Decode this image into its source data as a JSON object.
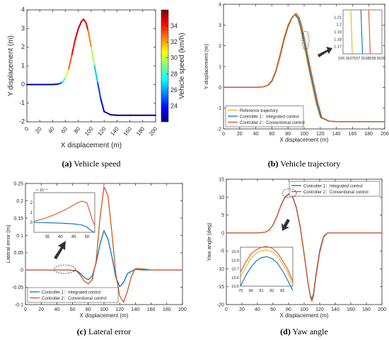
{
  "chart_data": [
    {
      "id": "a",
      "type": "line",
      "caption_letter": "(a)",
      "caption_text": " Vehicle speed",
      "xlabel": "X displacement (m)",
      "ylabel": "Y displacement (m)",
      "xlim": [
        0,
        200
      ],
      "ylim": [
        -2,
        4
      ],
      "xticks": [
        0,
        20,
        40,
        60,
        80,
        100,
        120,
        140,
        160,
        180,
        200
      ],
      "yticks": [
        -2,
        -1,
        0,
        1,
        2,
        3,
        4
      ],
      "colorbar": {
        "label": "Vehicle speed (km/h)",
        "range": [
          22,
          36
        ],
        "ticks": [
          24,
          26,
          28,
          30,
          32,
          34
        ]
      },
      "series": [
        {
          "x": [
            0,
            40,
            50,
            55,
            60,
            65,
            70,
            75,
            80,
            85,
            88,
            92,
            95,
            100,
            105,
            110,
            115,
            120,
            130,
            140,
            160,
            200
          ],
          "y": [
            0,
            0,
            0.03,
            0.12,
            0.35,
            0.85,
            1.6,
            2.4,
            3.0,
            3.4,
            3.5,
            3.3,
            2.9,
            2.0,
            1.0,
            0.1,
            -0.8,
            -1.45,
            -1.62,
            -1.65,
            -1.65,
            -1.65
          ],
          "speed": [
            22,
            22,
            23,
            26,
            29,
            32,
            34,
            35,
            35,
            35,
            35,
            35,
            34,
            31,
            28,
            25,
            24,
            23,
            22,
            22,
            22,
            22
          ]
        }
      ]
    },
    {
      "id": "b",
      "type": "line",
      "caption_letter": "(b)",
      "caption_text": " Vehicle trajectory",
      "xlabel": "X displacement (m)",
      "ylabel": "Y displacement (m)",
      "xlim": [
        0,
        200
      ],
      "ylim": [
        -2,
        4
      ],
      "xticks": [
        0,
        20,
        40,
        60,
        80,
        100,
        120,
        140,
        160,
        180,
        200
      ],
      "yticks": [
        -2,
        -1,
        0,
        1,
        2,
        3,
        4
      ],
      "legend": "bottom-left",
      "series": [
        {
          "name": "Reference trajectory",
          "color": "#edb120",
          "x": [
            0,
            40,
            50,
            55,
            60,
            65,
            70,
            75,
            80,
            85,
            88,
            92,
            95,
            100,
            105,
            110,
            115,
            120,
            130,
            140,
            160,
            200
          ],
          "y": [
            0,
            0,
            0.03,
            0.12,
            0.35,
            0.85,
            1.6,
            2.4,
            3.0,
            3.4,
            3.5,
            3.3,
            2.9,
            2.0,
            1.0,
            0.1,
            -0.8,
            -1.45,
            -1.62,
            -1.65,
            -1.65,
            -1.65
          ]
        },
        {
          "name": "Controller 1：Integrated control",
          "color": "#0072bd",
          "x": [
            0,
            40,
            50,
            55,
            60,
            65,
            70,
            75,
            80,
            85,
            89,
            93,
            96,
            101,
            106,
            111,
            116,
            121,
            131,
            140,
            160,
            200
          ],
          "y": [
            0,
            0,
            0.03,
            0.1,
            0.3,
            0.78,
            1.5,
            2.3,
            2.95,
            3.35,
            3.52,
            3.3,
            2.9,
            2.0,
            1.0,
            0.1,
            -0.8,
            -1.45,
            -1.63,
            -1.65,
            -1.65,
            -1.65
          ]
        },
        {
          "name": "Controller 2：Conventional control",
          "color": "#d95319",
          "x": [
            0,
            40,
            50,
            55,
            60,
            65,
            70,
            75,
            80,
            85,
            90,
            94,
            97,
            102,
            107,
            112,
            117,
            122,
            132,
            140,
            160,
            200
          ],
          "y": [
            0,
            0,
            0.03,
            0.1,
            0.28,
            0.75,
            1.45,
            2.25,
            2.9,
            3.35,
            3.56,
            3.35,
            2.95,
            2.05,
            1.05,
            0.15,
            -0.75,
            -1.45,
            -1.64,
            -1.65,
            -1.65,
            -1.65
          ]
        }
      ],
      "inset": {
        "xlim": [
          106.5,
          109
        ],
        "ylim": [
          1.16,
          1.22
        ],
        "xticks": [
          106.5,
          107,
          107.5,
          108,
          108.5,
          109
        ],
        "yticks": [
          1.16,
          1.17,
          1.18,
          1.19,
          1.2,
          1.21
        ],
        "lines": [
          {
            "color": "#edb120",
            "x": [
              107.1,
              107.0
            ]
          },
          {
            "color": "#0072bd",
            "x": [
              107.75,
              107.65
            ]
          },
          {
            "color": "#d95319",
            "x": [
              108.25,
              108.15
            ]
          }
        ]
      }
    },
    {
      "id": "c",
      "type": "line",
      "caption_letter": "(c)",
      "caption_text": " Lateral error",
      "xlabel": "X displacement (m)",
      "ylabel": "Lateral error (m)",
      "xlim": [
        0,
        200
      ],
      "ylim": [
        -0.1,
        0.25
      ],
      "xticks": [
        0,
        20,
        40,
        60,
        80,
        100,
        120,
        140,
        160,
        180,
        200
      ],
      "yticks": [
        -0.1,
        -0.05,
        0,
        0.05,
        0.1,
        0.15,
        0.2,
        0.25
      ],
      "legend": "bottom-left",
      "series": [
        {
          "name": "Controller 1：Integrated control",
          "color": "#0072bd",
          "x": [
            0,
            40,
            55,
            65,
            70,
            75,
            80,
            85,
            90,
            95,
            100,
            105,
            110,
            115,
            120,
            125,
            130,
            140,
            150,
            160,
            200
          ],
          "y": [
            0,
            0,
            0,
            -0.002,
            -0.01,
            -0.022,
            -0.028,
            -0.018,
            0.02,
            0.075,
            0.113,
            0.09,
            0.04,
            -0.02,
            -0.048,
            -0.036,
            -0.01,
            0.002,
            0,
            0,
            0
          ]
        },
        {
          "name": "Controller 2：Conventional control",
          "color": "#d95319",
          "x": [
            0,
            40,
            55,
            65,
            70,
            75,
            80,
            85,
            90,
            95,
            100,
            105,
            110,
            115,
            120,
            125,
            130,
            135,
            140,
            150,
            160,
            200
          ],
          "y": [
            0,
            0,
            0,
            -0.003,
            -0.015,
            -0.033,
            -0.04,
            -0.028,
            0.025,
            0.15,
            0.24,
            0.215,
            0.11,
            -0.01,
            -0.075,
            -0.093,
            -0.06,
            -0.018,
            0.004,
            0.003,
            0,
            0
          ]
        }
      ],
      "inset": {
        "exponent_label": "× 10⁻⁴",
        "xlim": [
          30,
          53
        ],
        "ylim": [
          -1,
          3
        ],
        "xticks": [
          35,
          40,
          45,
          50
        ],
        "yticks": [
          0,
          1,
          2
        ],
        "lines": [
          {
            "color": "#d95319",
            "x": [
              30,
              34,
              38,
              42,
              46,
              48,
              50,
              51,
              52,
              53
            ],
            "y": [
              0.1,
              0.4,
              0.8,
              1.3,
              1.9,
              2.15,
              2.0,
              1.2,
              0.3,
              -0.3
            ]
          },
          {
            "color": "#0072bd",
            "x": [
              30,
              35,
              40,
              45,
              48,
              50,
              51,
              52,
              53
            ],
            "y": [
              0,
              -0.03,
              -0.08,
              -0.15,
              -0.25,
              -0.45,
              -0.7,
              -0.9,
              -1.0
            ]
          }
        ]
      }
    },
    {
      "id": "d",
      "type": "line",
      "caption_letter": "(d)",
      "caption_text": " Yaw angle",
      "xlabel": "X displacement (m)",
      "ylabel": "Yaw angle (deg)",
      "xlim": [
        0,
        200
      ],
      "ylim": [
        -20,
        15
      ],
      "xticks": [
        0,
        20,
        40,
        60,
        80,
        100,
        120,
        140,
        160,
        180,
        200
      ],
      "yticks": [
        -20,
        -15,
        -10,
        -5,
        0,
        5,
        10,
        15
      ],
      "legend": "top-right",
      "series": [
        {
          "name": "Controller 1：Integrated control",
          "color": "#0072bd",
          "x": [
            0,
            40,
            50,
            55,
            60,
            65,
            70,
            75,
            80,
            82,
            85,
            90,
            95,
            100,
            105,
            108,
            110,
            112,
            115,
            120,
            125,
            130,
            140,
            200
          ],
          "y": [
            0,
            0,
            0.2,
            0.8,
            2.2,
            4.6,
            7.5,
            9.8,
            10.8,
            10.85,
            10.2,
            7.0,
            1.5,
            -6.0,
            -14.0,
            -17.5,
            -18.5,
            -17.0,
            -12.0,
            -5.0,
            -1.0,
            0,
            0,
            0
          ]
        },
        {
          "name": "Controller 2：Conventional control",
          "color": "#d95319",
          "x": [
            0,
            40,
            50,
            55,
            60,
            65,
            70,
            75,
            80,
            82,
            85,
            90,
            95,
            100,
            105,
            108,
            110,
            112,
            115,
            120,
            125,
            130,
            140,
            200
          ],
          "y": [
            0,
            0,
            0.2,
            0.8,
            2.2,
            4.7,
            7.6,
            9.9,
            10.9,
            10.95,
            10.3,
            7.2,
            1.8,
            -5.8,
            -13.8,
            -17.8,
            -19.0,
            -17.6,
            -12.5,
            -5.5,
            -1.2,
            0,
            0,
            0
          ]
        }
      ],
      "inset": {
        "xlim": [
          79,
          84
        ],
        "ylim": [
          10.5,
          10.95
        ],
        "xticks": [
          79,
          80,
          81,
          82,
          83
        ],
        "yticks": [
          10.5,
          10.6,
          10.7,
          10.8,
          10.9
        ],
        "lines": [
          {
            "color": "#edb120",
            "x": [
              79,
              79.5,
              80,
              80.5,
              81,
              81.5,
              82,
              82.5,
              83,
              83.5,
              84
            ],
            "y": [
              10.6,
              10.72,
              10.82,
              10.88,
              10.91,
              10.92,
              10.9,
              10.85,
              10.76,
              10.66,
              10.52
            ]
          },
          {
            "color": "#0072bd",
            "x": [
              79,
              79.5,
              80,
              80.5,
              81,
              81.5,
              82,
              82.5,
              83,
              83.5,
              84
            ],
            "y": [
              10.5,
              10.62,
              10.72,
              10.79,
              10.83,
              10.84,
              10.82,
              10.77,
              10.68,
              10.57,
              10.45
            ]
          },
          {
            "color": "#d95319",
            "x": [
              79,
              79.5,
              80,
              80.5,
              81,
              81.5,
              82,
              82.5,
              83,
              83.5,
              84
            ],
            "y": [
              10.66,
              10.78,
              10.87,
              10.92,
              10.95,
              10.96,
              10.94,
              10.89,
              10.8,
              10.7,
              10.56
            ]
          }
        ]
      }
    }
  ]
}
